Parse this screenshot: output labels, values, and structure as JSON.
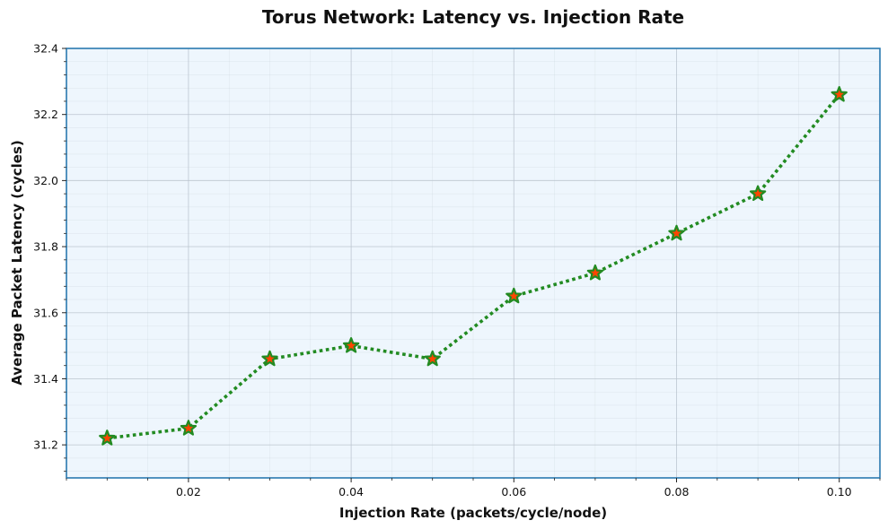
{
  "chart_data": {
    "type": "line",
    "title": "Torus Network: Latency vs. Injection Rate",
    "xlabel": "Injection Rate (packets/cycle/node)",
    "ylabel": "Average Packet Latency (cycles)",
    "x": [
      0.01,
      0.02,
      0.03,
      0.04,
      0.05,
      0.06,
      0.07,
      0.08,
      0.09,
      0.1
    ],
    "series": [
      {
        "values": [
          31.22,
          31.25,
          31.46,
          31.5,
          31.46,
          31.65,
          31.72,
          31.84,
          31.96,
          32.26
        ],
        "line_color": "#228B22",
        "line_style": "dotted",
        "marker": "star",
        "marker_face_color": "#ff4500",
        "marker_edge_color": "#228B22"
      }
    ],
    "xlim": [
      0.005,
      0.105
    ],
    "ylim": [
      31.1,
      32.4
    ],
    "xticks": [
      0.02,
      0.04,
      0.06,
      0.08,
      0.1
    ],
    "xtick_labels": [
      "0.02",
      "0.04",
      "0.06",
      "0.08",
      "0.10"
    ],
    "yticks": [
      31.2,
      31.4,
      31.6,
      31.8,
      32.0,
      32.2,
      32.4
    ],
    "ytick_labels": [
      "31.2",
      "31.4",
      "31.6",
      "31.8",
      "32.0",
      "32.2",
      "32.4"
    ],
    "grid": true,
    "minor_grid": true,
    "plot_background": "#eef6fd",
    "spine_color": "#2a7ab0",
    "grid_color": "#b8c2cc"
  }
}
